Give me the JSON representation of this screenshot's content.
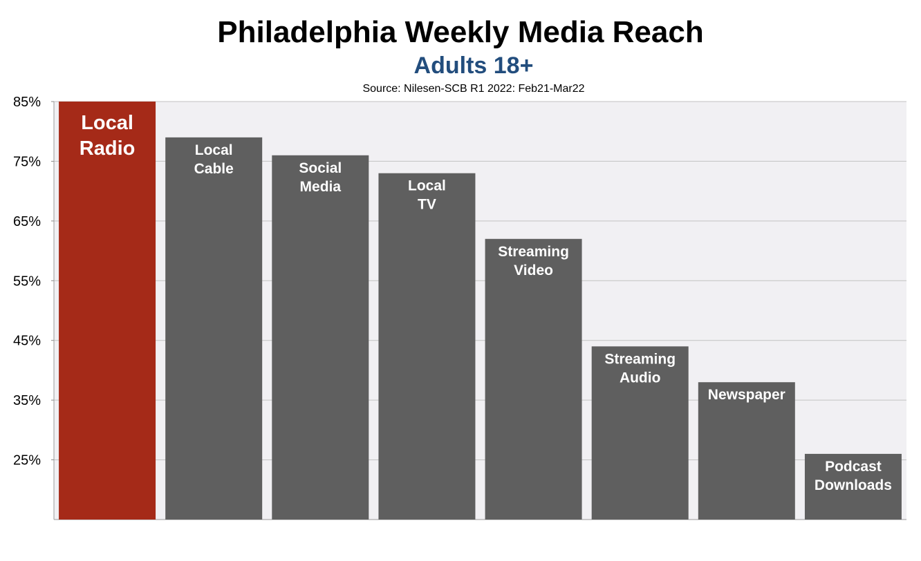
{
  "title": "Philadelphia Weekly Media Reach",
  "subtitle": "Adults 18+",
  "source": "Source: Nilesen-SCB R1 2022: Feb21-Mar22",
  "colors": {
    "highlight": "#a52a18",
    "bar": "#5f5f5f",
    "plot_bg": "#f1f0f3",
    "grid": "#c2c2c2",
    "subtitle": "#224d7d"
  },
  "chart_data": {
    "type": "bar",
    "title": "Philadelphia Weekly Media Reach",
    "subtitle": "Adults 18+",
    "xlabel": "",
    "ylabel": "",
    "ylim": [
      15,
      85
    ],
    "yticks": [
      "25%",
      "35%",
      "45%",
      "55%",
      "65%",
      "75%",
      "85%"
    ],
    "ytick_values": [
      25,
      35,
      45,
      55,
      65,
      75,
      85
    ],
    "grid": true,
    "categories": [
      [
        "Local",
        "Radio"
      ],
      [
        "Local",
        "Cable"
      ],
      [
        "Social",
        "Media"
      ],
      [
        "Local",
        "TV"
      ],
      [
        "Streaming",
        "Video"
      ],
      [
        "Streaming",
        "Audio"
      ],
      [
        "Newspaper"
      ],
      [
        "Podcast",
        "Downloads"
      ]
    ],
    "values": [
      85,
      79,
      76,
      73,
      62,
      44,
      38,
      26
    ],
    "highlight_index": 0
  }
}
